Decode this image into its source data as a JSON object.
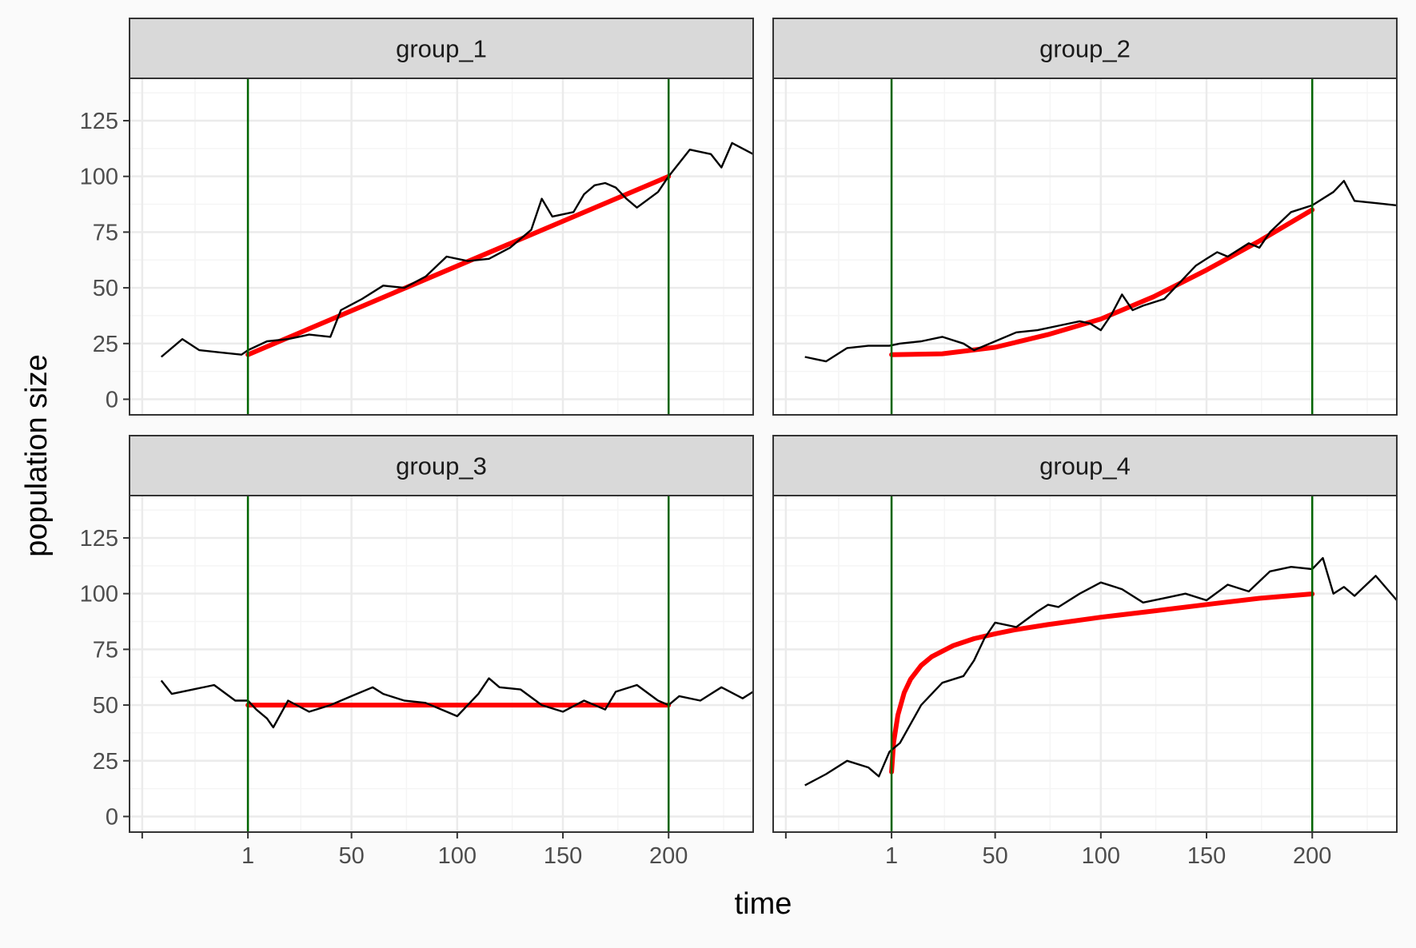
{
  "chart_data": {
    "type": "line",
    "xlabel": "time",
    "ylabel": "population size",
    "xlim": [
      -55,
      240
    ],
    "ylim": [
      -7,
      144
    ],
    "x_ticks": [
      1,
      50,
      100,
      150,
      200
    ],
    "x_tick_labels": [
      "1",
      "50",
      "100",
      "150",
      "200"
    ],
    "y_ticks": [
      0,
      25,
      50,
      75,
      100,
      125
    ],
    "y_tick_labels": [
      "0",
      "25",
      "50",
      "75",
      "100",
      "125"
    ],
    "vlines": [
      1,
      200
    ],
    "grid": true,
    "legend": "none",
    "colors": {
      "observed": "#000000",
      "fitted": "#ff0000",
      "vline": "#006400",
      "strip_fill": "#d9d9d9",
      "panel_bg": "#ffffff",
      "grid_major": "#ebebeb",
      "grid_minor": "#f5f5f5",
      "border": "#333333"
    },
    "panels": [
      {
        "strip": "group_1",
        "observed": {
          "x": [
            -40,
            -30,
            -22,
            -12,
            -2,
            1,
            10,
            20,
            30,
            40,
            45,
            55,
            65,
            75,
            85,
            95,
            105,
            115,
            125,
            135,
            140,
            145,
            155,
            160,
            165,
            170,
            175,
            180,
            185,
            195,
            200,
            210,
            220,
            225,
            230,
            240
          ],
          "y": [
            19,
            27,
            22,
            21,
            20,
            22,
            26,
            27,
            29,
            28,
            40,
            45,
            51,
            50,
            55,
            64,
            62,
            63,
            68,
            76,
            90,
            82,
            84,
            92,
            96,
            97,
            95,
            90,
            86,
            93,
            100,
            112,
            110,
            104,
            115,
            110
          ]
        },
        "fitted": {
          "x": [
            1,
            200
          ],
          "y": [
            20,
            100
          ]
        }
      },
      {
        "strip": "group_2",
        "observed": {
          "x": [
            -40,
            -30,
            -20,
            -10,
            0,
            5,
            15,
            25,
            35,
            40,
            50,
            60,
            70,
            80,
            90,
            95,
            100,
            105,
            110,
            115,
            120,
            130,
            140,
            145,
            150,
            155,
            160,
            170,
            175,
            180,
            190,
            200,
            210,
            215,
            220,
            230,
            240
          ],
          "y": [
            19,
            17,
            23,
            24,
            24,
            25,
            26,
            28,
            25,
            22,
            26,
            30,
            31,
            33,
            35,
            34,
            31,
            38,
            47,
            40,
            42,
            45,
            55,
            60,
            63,
            66,
            64,
            70,
            68,
            75,
            84,
            87,
            93,
            98,
            89,
            88,
            87
          ]
        },
        "fitted": {
          "x": [
            1,
            25,
            50,
            75,
            100,
            125,
            150,
            175,
            200
          ],
          "y": [
            20,
            20.4,
            23.3,
            29,
            36,
            46,
            58,
            71,
            85
          ]
        }
      },
      {
        "strip": "group_3",
        "observed": {
          "x": [
            -40,
            -35,
            -25,
            -15,
            -5,
            1,
            5,
            10,
            13,
            20,
            30,
            40,
            50,
            60,
            65,
            75,
            85,
            95,
            100,
            110,
            115,
            120,
            130,
            140,
            150,
            160,
            170,
            175,
            185,
            195,
            200,
            205,
            215,
            225,
            235,
            240
          ],
          "y": [
            61,
            55,
            57,
            59,
            52,
            52,
            48,
            44,
            40,
            52,
            47,
            50,
            54,
            58,
            55,
            52,
            51,
            47,
            45,
            55,
            62,
            58,
            57,
            50,
            47,
            52,
            48,
            56,
            59,
            52,
            50,
            54,
            52,
            58,
            53,
            56
          ]
        },
        "fitted": {
          "x": [
            1,
            200
          ],
          "y": [
            50,
            50
          ]
        }
      },
      {
        "strip": "group_4",
        "observed": {
          "x": [
            -40,
            -30,
            -20,
            -10,
            -5,
            0,
            5,
            15,
            25,
            35,
            40,
            45,
            50,
            60,
            70,
            75,
            80,
            90,
            100,
            110,
            120,
            130,
            140,
            150,
            160,
            170,
            180,
            190,
            200,
            205,
            210,
            215,
            220,
            230,
            240
          ],
          "y": [
            14,
            19,
            25,
            22,
            18,
            29,
            33,
            50,
            60,
            63,
            70,
            80,
            87,
            85,
            92,
            95,
            94,
            100,
            105,
            102,
            96,
            98,
            100,
            97,
            104,
            101,
            110,
            112,
            111,
            116,
            100,
            103,
            99,
            108,
            97
          ]
        },
        "fitted": {
          "x": [
            1,
            2,
            4,
            7,
            10,
            15,
            20,
            30,
            40,
            50,
            60,
            75,
            100,
            125,
            150,
            175,
            200
          ],
          "y": [
            20,
            33.3,
            45.5,
            55.6,
            61.6,
            67.8,
            71.7,
            76.6,
            79.8,
            82.0,
            83.9,
            86.1,
            89.4,
            92.2,
            95.1,
            97.9,
            99.9
          ]
        }
      }
    ]
  }
}
